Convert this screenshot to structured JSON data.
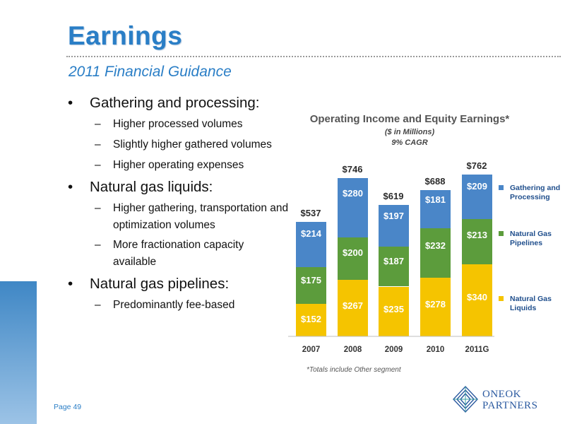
{
  "header": {
    "title": "Earnings",
    "subtitle": "2011 Financial Guidance"
  },
  "bullets": [
    {
      "label": "Gathering and processing:",
      "subs": [
        "Higher processed volumes",
        "Slightly higher gathered volumes",
        "Higher operating expenses"
      ]
    },
    {
      "label": "Natural gas liquids:",
      "subs": [
        "Higher gathering, transportation and optimization volumes",
        "More fractionation capacity available"
      ]
    },
    {
      "label": "Natural gas pipelines:",
      "subs": [
        "Predominantly fee-based"
      ]
    }
  ],
  "bullet_glyph": "•",
  "dash_glyph": "–",
  "chart_data": {
    "type": "bar",
    "stacked": true,
    "title": "Operating Income and Equity Earnings*",
    "subtitle": "($ in Millions)",
    "subtitle2": "9% CAGR",
    "categories": [
      "2007",
      "2008",
      "2009",
      "2010",
      "2011G"
    ],
    "series": [
      {
        "name": "Natural Gas Liquids",
        "color": "#f5c400",
        "values": [
          152,
          267,
          235,
          278,
          340
        ],
        "labels": [
          "$152",
          "$267",
          "$235",
          "$278",
          "$340"
        ]
      },
      {
        "name": "Natural Gas Pipelines",
        "color": "#5c9c3c",
        "values": [
          175,
          200,
          187,
          232,
          213
        ],
        "labels": [
          "$175",
          "$200",
          "$187",
          "$232",
          "$213"
        ]
      },
      {
        "name": "Gathering and Processing",
        "color": "#4a86c8",
        "values": [
          214,
          280,
          197,
          181,
          209
        ],
        "labels": [
          "$214",
          "$280",
          "$197",
          "$181",
          "$209"
        ]
      }
    ],
    "totals": [
      537,
      746,
      619,
      688,
      762
    ],
    "total_labels": [
      "$537",
      "$746",
      "$619",
      "$688",
      "$762"
    ],
    "legend_position": "right",
    "footnote": "*Totals include Other segment"
  },
  "footer": {
    "page": "Page 49",
    "logo_line1": "ONEOK",
    "logo_line2": "PARTNERS"
  }
}
